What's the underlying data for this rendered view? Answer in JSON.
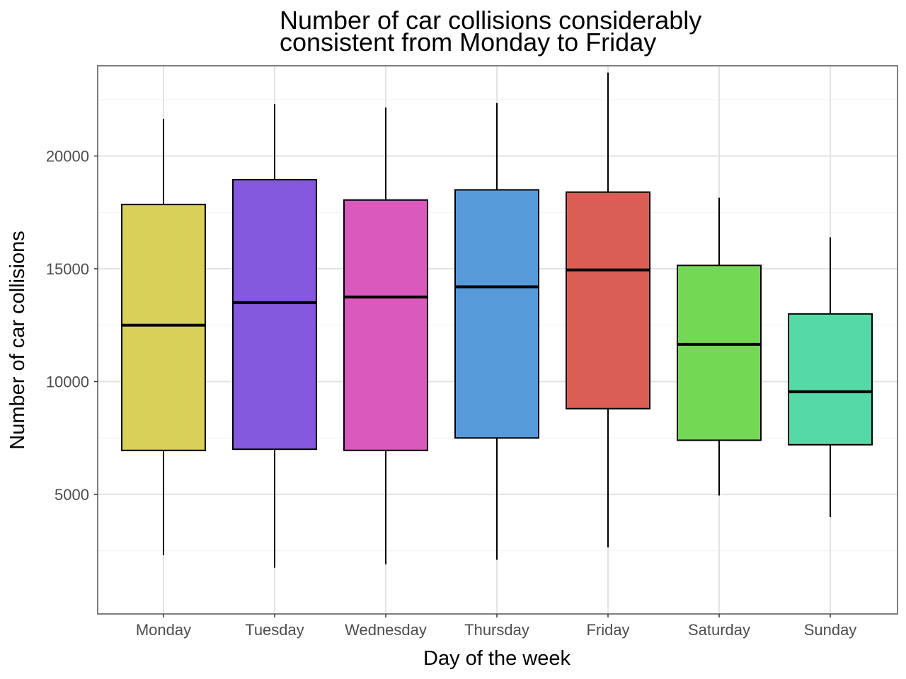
{
  "chart_data": {
    "type": "boxplot",
    "title": "Number of car collisions considerably consistent from Monday to Friday",
    "title_lines": [
      "Number of car collisions considerably",
      "consistent from Monday to Friday"
    ],
    "xlabel": "Day of the week",
    "ylabel": "Number of car collisions",
    "ylim": [
      -300,
      24000
    ],
    "yticks": [
      5000,
      10000,
      15000,
      20000
    ],
    "ytick_labels": [
      "5000",
      "10000",
      "15000",
      "20000"
    ],
    "grid": true,
    "categories": [
      "Monday",
      "Tuesday",
      "Wednesday",
      "Thursday",
      "Friday",
      "Saturday",
      "Sunday"
    ],
    "boxes": [
      {
        "category": "Monday",
        "whisker_low": 2300,
        "q1": 6950,
        "median": 12500,
        "q3": 17850,
        "whisker_high": 21650,
        "color": "#d9d05a"
      },
      {
        "category": "Tuesday",
        "whisker_low": 1750,
        "q1": 7000,
        "median": 13500,
        "q3": 18950,
        "whisker_high": 22300,
        "color": "#8559dd"
      },
      {
        "category": "Wednesday",
        "whisker_low": 1900,
        "q1": 6950,
        "median": 13750,
        "q3": 18050,
        "whisker_high": 22150,
        "color": "#d959bd"
      },
      {
        "category": "Thursday",
        "whisker_low": 2100,
        "q1": 7500,
        "median": 14200,
        "q3": 18500,
        "whisker_high": 22350,
        "color": "#579ad9"
      },
      {
        "category": "Friday",
        "whisker_low": 2650,
        "q1": 8800,
        "median": 14950,
        "q3": 18400,
        "whisker_high": 23700,
        "color": "#db5e56"
      },
      {
        "category": "Saturday",
        "whisker_low": 4950,
        "q1": 7400,
        "median": 11650,
        "q3": 15150,
        "whisker_high": 18150,
        "color": "#73d955"
      },
      {
        "category": "Sunday",
        "whisker_low": 4000,
        "q1": 7200,
        "median": 9550,
        "q3": 13000,
        "whisker_high": 16400,
        "color": "#55d9a6"
      }
    ]
  }
}
